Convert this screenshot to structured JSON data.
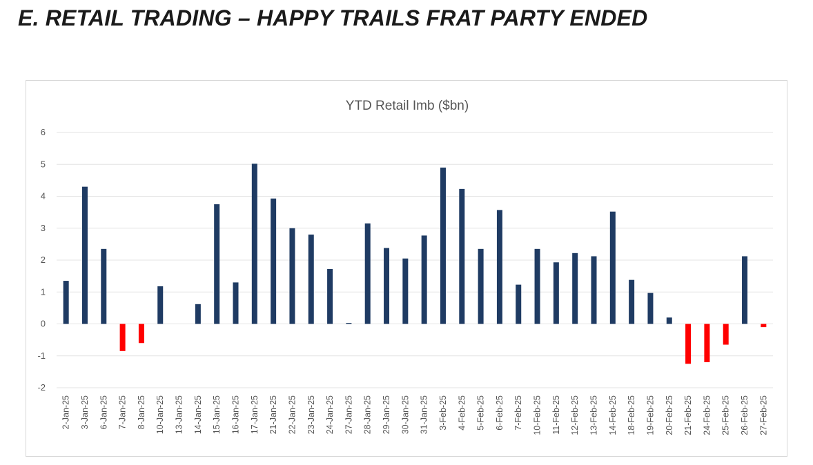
{
  "slide": {
    "title": "E. RETAIL TRADING – HAPPY TRAILS FRAT PARTY ENDED"
  },
  "colors": {
    "positive": "#1f3b63",
    "negative": "#ff0000",
    "grid": "#e3e3e3",
    "axis_text": "#555555"
  },
  "chart_data": {
    "type": "bar",
    "title": "YTD Retail Imb ($bn)",
    "xlabel": "",
    "ylabel": "",
    "ylim": [
      -2,
      6
    ],
    "yticks": [
      -2,
      -1,
      0,
      1,
      2,
      3,
      4,
      5,
      6
    ],
    "grid": true,
    "legend": "none",
    "categories": [
      "2-Jan-25",
      "3-Jan-25",
      "6-Jan-25",
      "7-Jan-25",
      "8-Jan-25",
      "10-Jan-25",
      "13-Jan-25",
      "14-Jan-25",
      "15-Jan-25",
      "16-Jan-25",
      "17-Jan-25",
      "21-Jan-25",
      "22-Jan-25",
      "23-Jan-25",
      "24-Jan-25",
      "27-Jan-25",
      "28-Jan-25",
      "29-Jan-25",
      "30-Jan-25",
      "31-Jan-25",
      "3-Feb-25",
      "4-Feb-25",
      "5-Feb-25",
      "6-Feb-25",
      "7-Feb-25",
      "10-Feb-25",
      "11-Feb-25",
      "12-Feb-25",
      "13-Feb-25",
      "14-Feb-25",
      "18-Feb-25",
      "19-Feb-25",
      "20-Feb-25",
      "21-Feb-25",
      "24-Feb-25",
      "25-Feb-25",
      "26-Feb-25",
      "27-Feb-25"
    ],
    "values": [
      1.35,
      4.3,
      2.35,
      -0.85,
      -0.6,
      1.18,
      0,
      0.62,
      3.75,
      1.3,
      5.02,
      3.93,
      3.0,
      2.8,
      1.72,
      0.03,
      3.15,
      2.38,
      2.05,
      2.77,
      4.9,
      4.23,
      2.35,
      3.57,
      1.23,
      2.35,
      1.93,
      2.22,
      2.12,
      3.52,
      1.38,
      0.97,
      0.2,
      -1.25,
      -1.2,
      -0.65,
      2.12,
      -0.1
    ]
  }
}
